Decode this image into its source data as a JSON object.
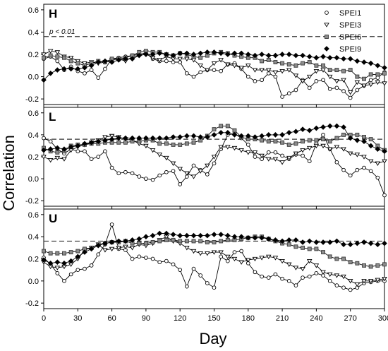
{
  "figure": {
    "ylabel": "Correlation",
    "xlabel": "Day",
    "threshold_label": "p < 0.01",
    "threshold_value": 0.36,
    "legend_placement": "top-right (inside panel H)"
  },
  "chart_data": [
    {
      "type": "line",
      "panel": "H",
      "xlim": [
        0,
        300
      ],
      "ylim": [
        -0.25,
        0.65
      ],
      "xticks": [
        0,
        30,
        60,
        90,
        120,
        150,
        180,
        210,
        240,
        270,
        300
      ],
      "yticks": [
        -0.2,
        0.0,
        0.2,
        0.4,
        0.6
      ],
      "ytick_labels": [
        "-0.2",
        "0.0",
        "0.2",
        "0.4",
        "0.6"
      ],
      "xtick_labels": [],
      "legend": [
        "SPEI1",
        "SPEI3",
        "SPEI6",
        "SPEI9"
      ],
      "x": [
        0,
        6,
        12,
        18,
        24,
        30,
        36,
        42,
        48,
        54,
        60,
        66,
        72,
        78,
        84,
        90,
        96,
        102,
        108,
        114,
        120,
        126,
        132,
        138,
        144,
        150,
        156,
        162,
        168,
        174,
        180,
        186,
        192,
        198,
        204,
        210,
        216,
        222,
        228,
        234,
        240,
        246,
        252,
        258,
        264,
        270,
        276,
        282,
        288,
        294,
        300
      ],
      "series": [
        {
          "name": "SPEI1",
          "marker": "circle-open",
          "values": [
            0.16,
            0.18,
            0.14,
            0.06,
            0.09,
            0.05,
            0.03,
            0.06,
            -0.01,
            0.07,
            0.16,
            0.17,
            0.18,
            0.19,
            0.2,
            0.21,
            0.16,
            0.14,
            0.14,
            0.13,
            0.13,
            0.03,
            0.0,
            0.04,
            0.06,
            0.06,
            0.05,
            0.11,
            0.12,
            0.07,
            0.0,
            -0.04,
            -0.03,
            0.03,
            0.0,
            -0.18,
            -0.15,
            -0.12,
            -0.03,
            -0.1,
            -0.04,
            -0.03,
            -0.11,
            -0.1,
            -0.13,
            -0.19,
            -0.12,
            -0.08,
            -0.03,
            -0.01,
            0.04
          ]
        },
        {
          "name": "SPEI3",
          "marker": "triangle-down-open",
          "values": [
            0.2,
            0.23,
            0.22,
            0.18,
            0.17,
            0.14,
            0.12,
            0.13,
            0.12,
            0.13,
            0.15,
            0.16,
            0.14,
            0.18,
            0.19,
            0.22,
            0.17,
            0.15,
            0.18,
            0.16,
            0.16,
            0.16,
            0.15,
            0.1,
            0.06,
            0.12,
            0.15,
            0.11,
            0.1,
            0.08,
            0.1,
            0.06,
            0.06,
            0.06,
            0.04,
            0.05,
            0.06,
            0.01,
            -0.04,
            0.0,
            0.05,
            0.06,
            0.0,
            -0.04,
            -0.03,
            -0.14,
            -0.05,
            -0.08,
            -0.07,
            -0.05,
            -0.06
          ]
        },
        {
          "name": "SPEI6",
          "marker": "square",
          "values": [
            0.17,
            0.19,
            0.18,
            0.17,
            0.14,
            0.12,
            0.1,
            0.12,
            0.14,
            0.13,
            0.16,
            0.16,
            0.17,
            0.19,
            0.22,
            0.23,
            0.22,
            0.22,
            0.2,
            0.19,
            0.21,
            0.2,
            0.18,
            0.17,
            0.19,
            0.21,
            0.22,
            0.21,
            0.19,
            0.18,
            0.17,
            0.17,
            0.14,
            0.15,
            0.13,
            0.12,
            0.11,
            0.1,
            0.12,
            0.13,
            0.1,
            0.1,
            0.06,
            0.06,
            0.05,
            0.06,
            0.0,
            -0.02,
            0.02,
            0.02,
            0.03
          ]
        },
        {
          "name": "SPEI9",
          "marker": "diamond",
          "values": [
            -0.03,
            0.03,
            0.06,
            0.07,
            0.07,
            0.07,
            0.08,
            0.1,
            0.13,
            0.14,
            0.13,
            0.15,
            0.16,
            0.16,
            0.19,
            0.2,
            0.2,
            0.21,
            0.2,
            0.19,
            0.21,
            0.21,
            0.2,
            0.21,
            0.22,
            0.22,
            0.21,
            0.2,
            0.21,
            0.21,
            0.2,
            0.19,
            0.2,
            0.19,
            0.19,
            0.2,
            0.2,
            0.19,
            0.19,
            0.18,
            0.17,
            0.18,
            0.17,
            0.17,
            0.16,
            0.16,
            0.14,
            0.13,
            0.12,
            0.1,
            0.08
          ]
        }
      ]
    },
    {
      "type": "line",
      "panel": "L",
      "xlim": [
        0,
        300
      ],
      "ylim": [
        -0.25,
        0.65
      ],
      "xticks": [
        0,
        30,
        60,
        90,
        120,
        150,
        180,
        210,
        240,
        270,
        300
      ],
      "yticks": [
        -0.2,
        0.0,
        0.2,
        0.4,
        0.6
      ],
      "ytick_labels": [
        "-0.2",
        "0.0",
        "0.2",
        "0.4",
        "0.6"
      ],
      "xtick_labels": [],
      "x": [
        0,
        6,
        12,
        18,
        24,
        30,
        36,
        42,
        48,
        54,
        60,
        66,
        72,
        78,
        84,
        90,
        96,
        102,
        108,
        114,
        120,
        126,
        132,
        138,
        144,
        150,
        156,
        162,
        168,
        174,
        180,
        186,
        192,
        198,
        204,
        210,
        216,
        222,
        228,
        234,
        240,
        246,
        252,
        258,
        264,
        270,
        276,
        282,
        288,
        294,
        300
      ],
      "series": [
        {
          "name": "SPEI1",
          "marker": "circle-open",
          "values": [
            0.37,
            0.34,
            0.27,
            0.23,
            0.27,
            0.25,
            0.25,
            0.18,
            0.2,
            0.25,
            0.1,
            0.05,
            0.06,
            0.05,
            0.02,
            0.0,
            -0.01,
            0.03,
            0.06,
            0.07,
            -0.05,
            0.02,
            0.12,
            0.08,
            0.04,
            0.14,
            0.27,
            0.4,
            0.41,
            0.37,
            0.31,
            0.2,
            0.18,
            0.24,
            0.24,
            0.21,
            0.18,
            0.22,
            0.21,
            0.16,
            0.32,
            0.4,
            0.27,
            0.15,
            0.08,
            0.03,
            0.08,
            0.1,
            0.07,
            0.01,
            -0.15
          ]
        },
        {
          "name": "SPEI3",
          "marker": "triangle-down-open",
          "values": [
            0.2,
            0.17,
            0.19,
            0.18,
            0.26,
            0.29,
            0.31,
            0.33,
            0.35,
            0.38,
            0.39,
            0.38,
            0.36,
            0.35,
            0.32,
            0.3,
            0.26,
            0.22,
            0.19,
            0.14,
            0.09,
            0.05,
            0.02,
            0.07,
            0.12,
            0.2,
            0.29,
            0.29,
            0.28,
            0.26,
            0.24,
            0.24,
            0.21,
            0.18,
            0.18,
            0.15,
            0.19,
            0.23,
            0.26,
            0.28,
            0.3,
            0.3,
            0.27,
            0.29,
            0.27,
            0.23,
            0.22,
            0.2,
            0.16,
            0.14,
            0.16
          ]
        },
        {
          "name": "SPEI6",
          "marker": "square",
          "values": [
            0.28,
            0.25,
            0.24,
            0.25,
            0.3,
            0.31,
            0.31,
            0.32,
            0.32,
            0.33,
            0.33,
            0.33,
            0.33,
            0.34,
            0.34,
            0.35,
            0.35,
            0.32,
            0.32,
            0.31,
            0.31,
            0.32,
            0.33,
            0.35,
            0.39,
            0.45,
            0.48,
            0.48,
            0.44,
            0.38,
            0.36,
            0.36,
            0.35,
            0.34,
            0.34,
            0.33,
            0.31,
            0.32,
            0.34,
            0.35,
            0.35,
            0.36,
            0.34,
            0.37,
            0.4,
            0.4,
            0.4,
            0.38,
            0.36,
            0.3,
            0.26
          ]
        },
        {
          "name": "SPEI9",
          "marker": "diamond",
          "values": [
            0.26,
            0.27,
            0.28,
            0.27,
            0.29,
            0.3,
            0.32,
            0.33,
            0.34,
            0.35,
            0.36,
            0.37,
            0.37,
            0.37,
            0.37,
            0.37,
            0.37,
            0.37,
            0.37,
            0.38,
            0.38,
            0.39,
            0.39,
            0.38,
            0.38,
            0.4,
            0.42,
            0.42,
            0.4,
            0.39,
            0.39,
            0.38,
            0.39,
            0.4,
            0.4,
            0.4,
            0.42,
            0.43,
            0.45,
            0.44,
            0.46,
            0.47,
            0.48,
            0.48,
            0.47,
            0.37,
            0.35,
            0.34,
            0.3,
            0.27,
            0.25
          ]
        }
      ]
    },
    {
      "type": "line",
      "panel": "U",
      "xlim": [
        0,
        300
      ],
      "ylim": [
        -0.25,
        0.65
      ],
      "xticks": [
        0,
        30,
        60,
        90,
        120,
        150,
        180,
        210,
        240,
        270,
        300
      ],
      "yticks": [
        -0.2,
        0.0,
        0.2,
        0.4,
        0.6
      ],
      "ytick_labels": [
        "-0.2",
        "0.0",
        "0.2",
        "0.4",
        "0.6"
      ],
      "xtick_labels": [
        "0",
        "30",
        "60",
        "90",
        "120",
        "150",
        "180",
        "210",
        "240",
        "270",
        "300"
      ],
      "x": [
        0,
        6,
        12,
        18,
        24,
        30,
        36,
        42,
        48,
        54,
        60,
        66,
        72,
        78,
        84,
        90,
        96,
        102,
        108,
        114,
        120,
        126,
        132,
        138,
        144,
        150,
        156,
        162,
        168,
        174,
        180,
        186,
        192,
        198,
        204,
        210,
        216,
        222,
        228,
        234,
        240,
        246,
        252,
        258,
        264,
        270,
        276,
        282,
        288,
        294,
        300
      ],
      "series": [
        {
          "name": "SPEI1",
          "marker": "circle-open",
          "values": [
            0.21,
            0.15,
            0.07,
            0.0,
            0.06,
            0.1,
            0.11,
            0.14,
            0.24,
            0.33,
            0.51,
            0.29,
            0.28,
            0.2,
            0.22,
            0.21,
            0.2,
            0.17,
            0.18,
            0.15,
            0.1,
            -0.05,
            0.11,
            0.05,
            -0.02,
            -0.06,
            0.22,
            0.18,
            0.26,
            0.27,
            0.16,
            0.08,
            0.04,
            0.03,
            0.06,
            0.02,
            0.0,
            -0.04,
            0.03,
            0.04,
            0.07,
            0.05,
            0.0,
            -0.04,
            -0.06,
            -0.08,
            -0.06,
            -0.02,
            -0.01,
            0.0,
            0.0
          ]
        },
        {
          "name": "SPEI3",
          "marker": "triangle-down-open",
          "values": [
            0.17,
            0.13,
            0.12,
            0.13,
            0.15,
            0.2,
            0.28,
            0.3,
            0.33,
            0.28,
            0.29,
            0.3,
            0.31,
            0.3,
            0.33,
            0.32,
            0.34,
            0.37,
            0.4,
            0.36,
            0.34,
            0.3,
            0.27,
            0.25,
            0.25,
            0.26,
            0.26,
            0.22,
            0.2,
            0.17,
            0.19,
            0.2,
            0.21,
            0.22,
            0.21,
            0.18,
            0.15,
            0.12,
            0.11,
            0.18,
            0.14,
            0.08,
            0.06,
            0.05,
            0.04,
            0.0,
            -0.03,
            0.0,
            0.0,
            0.01,
            0.02
          ]
        },
        {
          "name": "SPEI6",
          "marker": "square",
          "values": [
            0.27,
            0.25,
            0.25,
            0.25,
            0.26,
            0.27,
            0.29,
            0.3,
            0.33,
            0.34,
            0.35,
            0.35,
            0.36,
            0.34,
            0.34,
            0.34,
            0.35,
            0.36,
            0.37,
            0.37,
            0.36,
            0.36,
            0.36,
            0.36,
            0.35,
            0.35,
            0.36,
            0.37,
            0.37,
            0.38,
            0.39,
            0.4,
            0.4,
            0.38,
            0.36,
            0.34,
            0.33,
            0.31,
            0.3,
            0.29,
            0.29,
            0.26,
            0.22,
            0.2,
            0.2,
            0.17,
            0.16,
            0.14,
            0.13,
            0.14,
            0.15
          ]
        },
        {
          "name": "SPEI9",
          "marker": "diamond",
          "values": [
            0.19,
            0.16,
            0.17,
            0.16,
            0.18,
            0.22,
            0.26,
            0.29,
            0.32,
            0.34,
            0.35,
            0.36,
            0.36,
            0.37,
            0.38,
            0.4,
            0.41,
            0.43,
            0.43,
            0.42,
            0.41,
            0.41,
            0.41,
            0.41,
            0.41,
            0.42,
            0.42,
            0.41,
            0.4,
            0.4,
            0.39,
            0.39,
            0.39,
            0.38,
            0.37,
            0.36,
            0.37,
            0.37,
            0.35,
            0.36,
            0.35,
            0.35,
            0.35,
            0.36,
            0.33,
            0.33,
            0.34,
            0.35,
            0.34,
            0.33,
            0.34
          ]
        }
      ]
    }
  ]
}
